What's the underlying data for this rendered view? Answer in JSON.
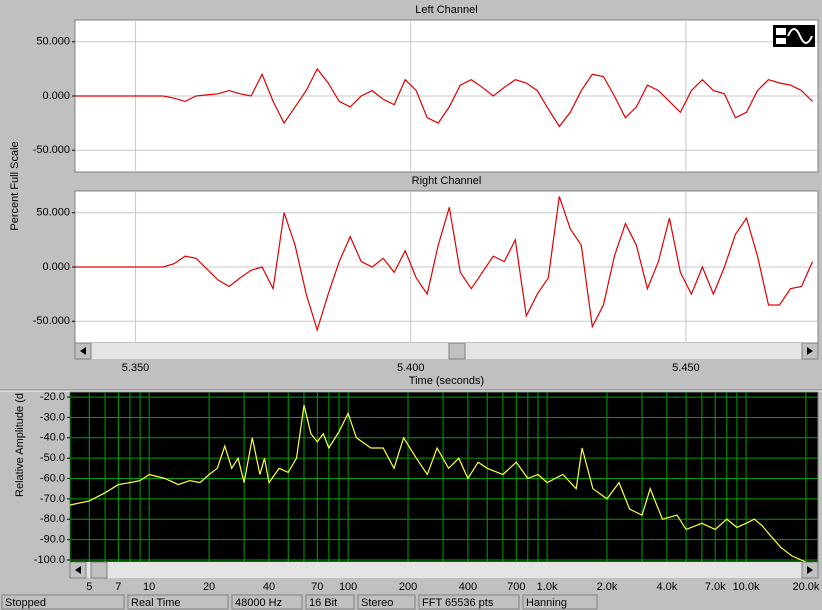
{
  "chart_data": [
    {
      "type": "line",
      "title": "Left Channel",
      "ylabel": "Percent Full Scale",
      "x": [
        5.339,
        5.341,
        5.343,
        5.345,
        5.347,
        5.349,
        5.351,
        5.353,
        5.355,
        5.357,
        5.359,
        5.361,
        5.363,
        5.365,
        5.367,
        5.369,
        5.371,
        5.373,
        5.375,
        5.377,
        5.379,
        5.381,
        5.383,
        5.385,
        5.387,
        5.389,
        5.391,
        5.393,
        5.395,
        5.397,
        5.399,
        5.401,
        5.403,
        5.405,
        5.407,
        5.409,
        5.411,
        5.413,
        5.415,
        5.417,
        5.419,
        5.421,
        5.423,
        5.425,
        5.427,
        5.429,
        5.431,
        5.433,
        5.435,
        5.437,
        5.439,
        5.441,
        5.443,
        5.445,
        5.447,
        5.449,
        5.451,
        5.453,
        5.455,
        5.457,
        5.459,
        5.461,
        5.463,
        5.465,
        5.467,
        5.469,
        5.471,
        5.473
      ],
      "series": [
        {
          "color": "#e00000",
          "values": [
            0,
            0,
            0,
            0,
            0,
            0,
            0,
            0,
            0,
            -2,
            -5,
            0,
            1,
            2,
            5,
            2,
            0,
            20,
            -5,
            -25,
            -10,
            5,
            25,
            12,
            -5,
            -10,
            0,
            5,
            -3,
            -8,
            15,
            5,
            -20,
            -25,
            -10,
            10,
            15,
            8,
            0,
            8,
            15,
            12,
            5,
            -12,
            -28,
            -15,
            5,
            20,
            18,
            0,
            -20,
            -10,
            10,
            5,
            -5,
            -15,
            5,
            15,
            5,
            2,
            -20,
            -15,
            5,
            15,
            12,
            10,
            5,
            -5
          ]
        }
      ],
      "xlim": [
        5.339,
        5.474
      ],
      "ylim": [
        -70,
        70
      ],
      "yticks": [
        {
          "value": 50,
          "label": "50.000"
        },
        {
          "value": 0,
          "label": "0.000"
        },
        {
          "value": -50,
          "label": "-50.000"
        }
      ],
      "grid": true,
      "grid_color": "#c8c8c8",
      "background": "#ffffff"
    },
    {
      "type": "line",
      "title": "Right Channel",
      "xlabel": "Time (seconds)",
      "x": [
        5.339,
        5.341,
        5.343,
        5.345,
        5.347,
        5.349,
        5.351,
        5.353,
        5.355,
        5.357,
        5.359,
        5.361,
        5.363,
        5.365,
        5.367,
        5.369,
        5.371,
        5.373,
        5.375,
        5.377,
        5.379,
        5.381,
        5.383,
        5.385,
        5.387,
        5.389,
        5.391,
        5.393,
        5.395,
        5.397,
        5.399,
        5.401,
        5.403,
        5.405,
        5.407,
        5.409,
        5.411,
        5.413,
        5.415,
        5.417,
        5.419,
        5.421,
        5.423,
        5.425,
        5.427,
        5.429,
        5.431,
        5.433,
        5.435,
        5.437,
        5.439,
        5.441,
        5.443,
        5.445,
        5.447,
        5.449,
        5.451,
        5.453,
        5.455,
        5.457,
        5.459,
        5.461,
        5.463,
        5.465,
        5.467,
        5.469,
        5.471,
        5.473
      ],
      "series": [
        {
          "color": "#e00000",
          "values": [
            0,
            0,
            0,
            0,
            0,
            0,
            0,
            0,
            0,
            3,
            10,
            8,
            -2,
            -12,
            -18,
            -10,
            -3,
            0,
            -20,
            50,
            20,
            -25,
            -58,
            -25,
            5,
            28,
            5,
            0,
            8,
            -5,
            15,
            -10,
            -25,
            20,
            55,
            -5,
            -20,
            -5,
            10,
            5,
            25,
            -45,
            -25,
            -10,
            65,
            35,
            20,
            -55,
            -35,
            10,
            40,
            20,
            -20,
            5,
            45,
            -5,
            -25,
            0,
            -25,
            0,
            30,
            45,
            10,
            -35,
            -35,
            -20,
            -18,
            5
          ]
        }
      ],
      "xlim": [
        5.339,
        5.474
      ],
      "ylim": [
        -70,
        70
      ],
      "xticks": [
        {
          "value": 5.35,
          "label": "5.350"
        },
        {
          "value": 5.4,
          "label": "5.400"
        },
        {
          "value": 5.45,
          "label": "5.450"
        }
      ],
      "yticks": [
        {
          "value": 50,
          "label": "50.000"
        },
        {
          "value": 0,
          "label": "0.000"
        },
        {
          "value": -50,
          "label": "-50.000"
        }
      ],
      "grid": true,
      "grid_color": "#c8c8c8",
      "background": "#ffffff"
    },
    {
      "type": "line",
      "ylabel": "Relative Amplitude (d",
      "xscale": "log",
      "x": [
        4,
        5,
        6,
        7,
        8,
        9,
        10,
        12,
        14,
        16,
        18,
        20,
        22,
        24,
        26,
        28,
        30,
        33,
        36,
        38,
        40,
        45,
        50,
        55,
        60,
        65,
        70,
        75,
        80,
        90,
        100,
        110,
        130,
        150,
        170,
        190,
        220,
        250,
        280,
        320,
        360,
        400,
        450,
        500,
        600,
        700,
        800,
        900,
        1000,
        1200,
        1400,
        1500,
        1700,
        2000,
        2300,
        2600,
        3000,
        3300,
        3800,
        4500,
        5000,
        6000,
        7000,
        8000,
        9000,
        10000,
        11000,
        12000,
        13000,
        15000,
        17000,
        20000
      ],
      "series": [
        {
          "color": "#ffff40",
          "values": [
            -73,
            -71,
            -67,
            -63,
            -62,
            -61,
            -58,
            -60,
            -63,
            -61,
            -62,
            -58,
            -55,
            -44,
            -55,
            -50,
            -62,
            -40,
            -58,
            -50,
            -62,
            -55,
            -57,
            -50,
            -24,
            -38,
            -42,
            -38,
            -45,
            -37,
            -28,
            -40,
            -45,
            -45,
            -55,
            -40,
            -50,
            -58,
            -45,
            -55,
            -50,
            -60,
            -52,
            -55,
            -58,
            -52,
            -60,
            -58,
            -62,
            -58,
            -65,
            -45,
            -65,
            -70,
            -62,
            -75,
            -78,
            -65,
            -80,
            -78,
            -85,
            -82,
            -85,
            -80,
            -84,
            -82,
            -80,
            -83,
            -87,
            -94,
            -98,
            -101
          ]
        }
      ],
      "xlim": [
        4,
        23000
      ],
      "ylim": [
        -101,
        -17.5
      ],
      "xticks": [
        5,
        7,
        10,
        20,
        40,
        70,
        100,
        200,
        400,
        700,
        {
          "value": 1000,
          "label": "1.0k"
        },
        {
          "value": 2000,
          "label": "2.0k"
        },
        {
          "value": 4000,
          "label": "4.0k"
        },
        {
          "value": 7000,
          "label": "7.0k"
        },
        {
          "value": 10000,
          "label": "10.0k"
        },
        {
          "value": 20000,
          "label": "20.0k"
        }
      ],
      "minor_xticks": [
        4,
        6,
        8,
        9,
        30,
        50,
        60,
        80,
        90,
        300,
        500,
        600,
        800,
        900,
        3000,
        5000,
        6000,
        8000,
        9000
      ],
      "yticks": [
        {
          "value": -20,
          "label": "-20.0"
        },
        {
          "value": -30,
          "label": "-30.0"
        },
        {
          "value": -40,
          "label": "-40.0"
        },
        {
          "value": -50,
          "label": "-50.0"
        },
        {
          "value": -60,
          "label": "-60.0"
        },
        {
          "value": -70,
          "label": "-70.0"
        },
        {
          "value": -80,
          "label": "-80.0"
        },
        {
          "value": -90,
          "label": "-90.0"
        },
        {
          "value": -100,
          "label": "-100.0"
        }
      ],
      "grid": true,
      "grid_color": "#00a000",
      "background": "#000000"
    }
  ],
  "status_bar": [
    "Stopped",
    "Real Time",
    "48000 Hz",
    "16 Bit",
    "Stereo",
    "FFT 65536 pts",
    "Hanning"
  ]
}
